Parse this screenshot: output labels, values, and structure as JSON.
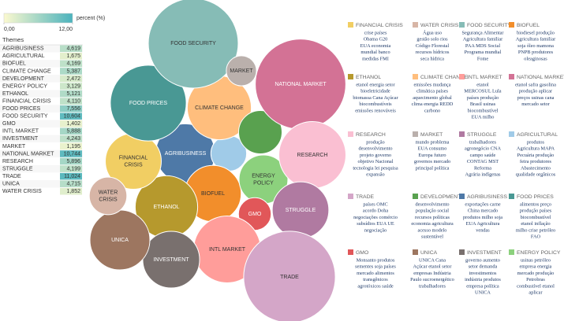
{
  "chart_data": {
    "type": "bubble",
    "legend_title": "percent (%)",
    "legend_ticks": [
      {
        "value": 0,
        "label": "0,00"
      },
      {
        "value": 12,
        "label": "12,00"
      }
    ],
    "color_range": [
      "#fbf9cf",
      "#4cb3bd"
    ],
    "table_title": "Themes",
    "categories": [
      "AGRIBUSINESS",
      "AGRICULTURAL",
      "BIOFUEL",
      "CLIMATE CHANGE",
      "DEVELOPMENT",
      "ENERGY POLICY",
      "ETHANOL",
      "FINANCIAL CRISIS",
      "FOOD PRICES",
      "FOOD SECURITY",
      "GMO",
      "INTL MARKET",
      "INVESTMENT",
      "MARKET",
      "NATIONAL MARKET",
      "RESEARCH",
      "STRUGGLE",
      "TRADE",
      "UNICA",
      "WATER CRISIS"
    ],
    "values": [
      4.619,
      1.675,
      4.169,
      5.387,
      2.472,
      3.129,
      5.121,
      4.11,
      7.556,
      10.604,
      1.402,
      5.888,
      4.243,
      1.195,
      10.744,
      5.896,
      4.199,
      11.024,
      4.715,
      1.852
    ],
    "value_labels": [
      "4,619",
      "1,675",
      "4,169",
      "5,387",
      "2,472",
      "3,129",
      "5,121",
      "4,110",
      "7,556",
      "10,604",
      "1,402",
      "5,888",
      "4,243",
      "1,195",
      "10,744",
      "5,896",
      "4,199",
      "11,024",
      "4,715",
      "1,852"
    ],
    "colors": [
      "#4e79a7",
      "#a0cbe8",
      "#f28e2b",
      "#ffbe7d",
      "#59a14f",
      "#8cd17d",
      "#b6992d",
      "#f1ce63",
      "#499894",
      "#86bcb6",
      "#e15759",
      "#ff9d9a",
      "#79706e",
      "#bab0ac",
      "#d37295",
      "#fabfd2",
      "#b07aa1",
      "#d4a6c8",
      "#9d7660",
      "#d7b5a6"
    ],
    "bubble_labels": [
      [
        "AGRIBUSINESS"
      ],
      null,
      [
        "BIOFUEL"
      ],
      [
        "CLIMATE CHANGE"
      ],
      null,
      [
        "ENERGY",
        "POLICY"
      ],
      [
        "ETHANOL"
      ],
      [
        "FINANCIAL",
        "CRISIS"
      ],
      [
        "FOOD PRICES"
      ],
      [
        "FOOD SECURITY"
      ],
      [
        "GMO"
      ],
      [
        "INTL MARKET"
      ],
      [
        "INVESTMENT"
      ],
      [
        "MARKET"
      ],
      [
        "NATIONAL MARKET"
      ],
      [
        "RESEARCH"
      ],
      [
        "STRUGGLE"
      ],
      [
        "TRADE"
      ],
      [
        "UNICA"
      ],
      [
        "WATER",
        "CRISIS"
      ]
    ],
    "cards": [
      {
        "title": "FINANCIAL CRISIS",
        "lines": [
          "crise países",
          "Obama G20",
          "EUA economia",
          "mundial banco",
          "medidas FMI"
        ]
      },
      {
        "title": "WATER CRISIS",
        "lines": [
          "Água uso",
          "gestão solo rios",
          "Código Florestal",
          "recursos hídricos",
          "seca hídrica"
        ]
      },
      {
        "title": "FOOD SECURITY",
        "lines": [
          "Segurança Alimentar",
          "Agricultura familiar",
          "PAA MDS Social",
          "Programa mundial",
          "Fome"
        ]
      },
      {
        "title": "BIOFUEL",
        "lines": [
          "biodiesel produção",
          "Agricultura familiar",
          "soja  óleo mamona",
          "PNPB produtores",
          "oleaginosas"
        ]
      },
      {
        "title": "ETHANOL",
        "lines": [
          "etanol energia setor",
          "bioeletricidade",
          "biomassa Cana Açúcar",
          "biocombustíveis",
          "emissões renováveis"
        ]
      },
      {
        "title": "CLIMATE CHANGE",
        "lines": [
          "emissões mudança",
          "climática países",
          "aquecimento global",
          "clima energia REDD",
          "carbono"
        ]
      },
      {
        "title": "INTL MARKET",
        "lines": [
          "etanol",
          "MERCOSUL Lula",
          "países produção",
          "Brasil usinas",
          "biocombustível",
          "EUA milho"
        ]
      },
      {
        "title": "NATIONAL MARKET",
        "lines": [
          "etanol safra gasolina",
          "produção aplicar",
          "preços usinas cana",
          "mercado setor"
        ]
      },
      {
        "title": "RESEARCH",
        "lines": [
          "produção",
          "desenvolvimento",
          "projeto governo",
          "objetivo Nacional",
          "tecnologia lei pesquisa",
          "expansão"
        ]
      },
      {
        "title": "MARKET",
        "lines": [
          "mundo problema",
          "EUA consumo",
          "Europa futuro",
          "governos mercado",
          "principal política"
        ]
      },
      {
        "title": "STRUGGLE",
        "lines": [
          "trabalhadores",
          "agronegócio CNA",
          "campo saúde",
          "CONTAG MST",
          "Reforma",
          "Agrária indígenas"
        ]
      },
      {
        "title": "AGRICULTURAL",
        "lines": [
          "produtos",
          "Agricultura MAPA",
          "Pecuária produção",
          "feira produtores",
          "Abastecimento",
          "qualidade orgânicos"
        ]
      },
      {
        "title": "TRADE",
        "lines": [
          "países OMC",
          "acordo Doha",
          "negociações comércio",
          "subsídios EUA UE",
          "negociação"
        ]
      },
      {
        "title": "DEVELOPMENT",
        "lines": [
          "desenvolvimento",
          "população social",
          "recursos políticas",
          "economia agricultura",
          "acesso modelo",
          "sustentável"
        ]
      },
      {
        "title": "AGRIBUSINESS",
        "lines": [
          "exportações carne",
          "China mercado",
          "produtos milho soja",
          "EUA Agricultura",
          "vendas"
        ]
      },
      {
        "title": "FOOD PRICES",
        "lines": [
          "alimentos preço",
          "produção países",
          "biocombustível",
          "etanol inflação",
          "milho crise petróleo",
          "FAO"
        ]
      },
      {
        "title": "GMO",
        "lines": [
          "Monsanto produtos",
          "sementes  soja países",
          "mercado alimentos",
          "transgênicos",
          "agrotóxicos  saúde"
        ]
      },
      {
        "title": "UNICA",
        "lines": [
          "UNICA Cana",
          "Açúcar etanol setor",
          "empresas Indústria",
          "Paulo sucroenergético",
          "trabalhadores"
        ]
      },
      {
        "title": "INVESTMENT",
        "lines": [
          "governo aumento",
          "setor demanda",
          "investimentos",
          "indústria produtos",
          "empresa política",
          "UNICA"
        ]
      },
      {
        "title": "ENERGY POLICY",
        "lines": [
          "usinas petróleo",
          "empresa energia",
          "mercado produção",
          "Petrobras",
          "combustível etanol",
          "aplicar"
        ]
      }
    ]
  }
}
